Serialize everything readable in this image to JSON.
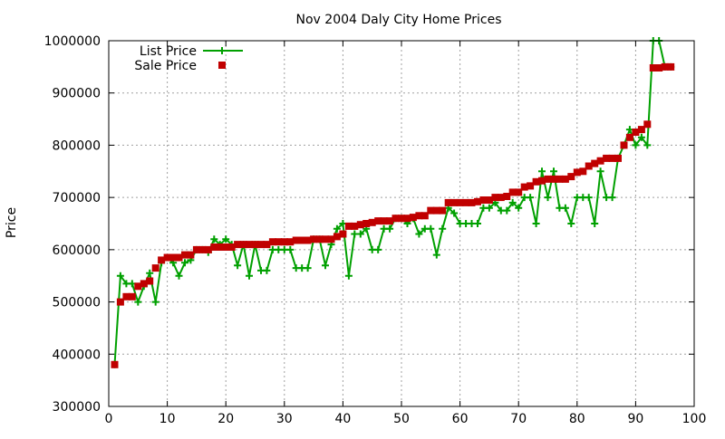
{
  "colors": {
    "list_price": "#00a000",
    "sale_price": "#c00000",
    "grid": "#a0a0a0",
    "frame": "#000000"
  },
  "chart_data": {
    "type": "scatter",
    "title": "Nov 2004 Daly City Home Prices",
    "xlabel": "",
    "ylabel": "Price",
    "xlim": [
      0,
      100
    ],
    "ylim": [
      300000,
      1000000
    ],
    "x_ticks": [
      0,
      10,
      20,
      30,
      40,
      50,
      60,
      70,
      80,
      90,
      100
    ],
    "y_ticks": [
      300000,
      400000,
      500000,
      600000,
      700000,
      800000,
      900000,
      1000000
    ],
    "grid": true,
    "legend_position": "top-left",
    "series": [
      {
        "name": "List Price",
        "style": "linespoints",
        "marker": "plus",
        "color": "#00a000",
        "x": [
          1,
          2,
          3,
          4,
          5,
          6,
          7,
          8,
          9,
          10,
          11,
          12,
          13,
          14,
          15,
          16,
          17,
          18,
          19,
          20,
          21,
          22,
          23,
          24,
          25,
          26,
          27,
          28,
          29,
          30,
          31,
          32,
          33,
          34,
          35,
          36,
          37,
          38,
          39,
          40,
          41,
          42,
          43,
          44,
          45,
          46,
          47,
          48,
          49,
          50,
          51,
          52,
          53,
          54,
          55,
          56,
          57,
          58,
          59,
          60,
          61,
          62,
          63,
          64,
          65,
          66,
          67,
          68,
          69,
          70,
          71,
          72,
          73,
          74,
          75,
          76,
          77,
          78,
          79,
          80,
          81,
          82,
          83,
          84,
          85,
          86,
          87,
          88,
          89,
          90,
          91,
          92,
          93,
          94,
          95,
          96
        ],
        "y": [
          380000,
          550000,
          535000,
          535000,
          500000,
          530000,
          555000,
          500000,
          575000,
          585000,
          575000,
          550000,
          575000,
          580000,
          600000,
          600000,
          595000,
          620000,
          610000,
          620000,
          610000,
          570000,
          610000,
          550000,
          610000,
          560000,
          560000,
          600000,
          600000,
          600000,
          600000,
          565000,
          565000,
          565000,
          620000,
          620000,
          570000,
          610000,
          640000,
          650000,
          550000,
          630000,
          630000,
          640000,
          600000,
          600000,
          640000,
          640000,
          660000,
          660000,
          650000,
          660000,
          630000,
          640000,
          640000,
          590000,
          640000,
          680000,
          670000,
          650000,
          650000,
          650000,
          650000,
          680000,
          680000,
          690000,
          675000,
          675000,
          690000,
          680000,
          700000,
          700000,
          650000,
          750000,
          700000,
          750000,
          680000,
          680000,
          650000,
          700000,
          700000,
          700000,
          650000,
          750000,
          700000,
          700000,
          775000,
          800000,
          830000,
          800000,
          815000,
          800000,
          1000000,
          1000000,
          950000,
          950000
        ]
      },
      {
        "name": "Sale Price",
        "style": "points",
        "marker": "square",
        "color": "#c00000",
        "x": [
          1,
          2,
          3,
          4,
          5,
          6,
          7,
          8,
          9,
          10,
          11,
          12,
          13,
          14,
          15,
          16,
          17,
          18,
          19,
          20,
          21,
          22,
          23,
          24,
          25,
          26,
          27,
          28,
          29,
          30,
          31,
          32,
          33,
          34,
          35,
          36,
          37,
          38,
          39,
          40,
          41,
          42,
          43,
          44,
          45,
          46,
          47,
          48,
          49,
          50,
          51,
          52,
          53,
          54,
          55,
          56,
          57,
          58,
          59,
          60,
          61,
          62,
          63,
          64,
          65,
          66,
          67,
          68,
          69,
          70,
          71,
          72,
          73,
          74,
          75,
          76,
          77,
          78,
          79,
          80,
          81,
          82,
          83,
          84,
          85,
          86,
          87,
          88,
          89,
          90,
          91,
          92,
          93,
          94,
          95,
          96
        ],
        "y": [
          380000,
          500000,
          510000,
          510000,
          530000,
          535000,
          540000,
          565000,
          580000,
          585000,
          585000,
          585000,
          590000,
          590000,
          600000,
          600000,
          600000,
          605000,
          605000,
          605000,
          605000,
          610000,
          610000,
          610000,
          610000,
          610000,
          610000,
          615000,
          615000,
          615000,
          615000,
          618000,
          618000,
          618000,
          620000,
          620000,
          620000,
          620000,
          625000,
          630000,
          645000,
          645000,
          648000,
          650000,
          652000,
          655000,
          655000,
          655000,
          660000,
          660000,
          660000,
          662000,
          665000,
          665000,
          675000,
          675000,
          675000,
          690000,
          690000,
          690000,
          690000,
          690000,
          692000,
          695000,
          695000,
          700000,
          700000,
          702000,
          710000,
          710000,
          720000,
          722000,
          730000,
          732000,
          735000,
          735000,
          735000,
          735000,
          740000,
          748000,
          750000,
          760000,
          765000,
          770000,
          775000,
          775000,
          775000,
          800000,
          815000,
          825000,
          830000,
          840000,
          948000,
          948000,
          950000,
          950000
        ]
      }
    ]
  }
}
